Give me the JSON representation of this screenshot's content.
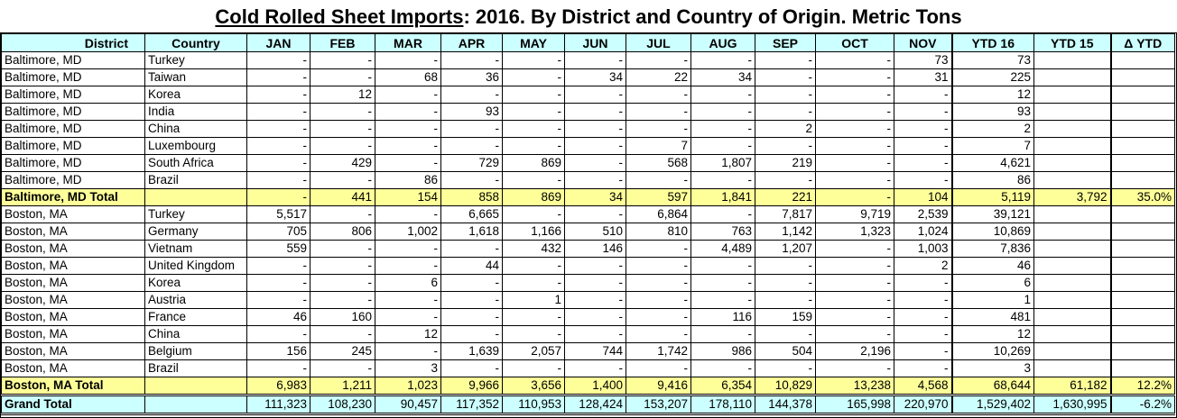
{
  "title": {
    "underlined": "Cold Rolled Sheet Imports",
    "rest": ": 2016. By District and Country of Origin. Metric Tons"
  },
  "headers": [
    "District",
    "Country",
    "JAN",
    "FEB",
    "MAR",
    "APR",
    "MAY",
    "JUN",
    "JUL",
    "AUG",
    "SEP",
    "OCT",
    "NOV",
    "YTD 16",
    "YTD 15",
    "Δ YTD"
  ],
  "rows": [
    {
      "type": "data",
      "cells": [
        "Baltimore, MD",
        "Turkey",
        "-",
        "-",
        "-",
        "-",
        "-",
        "-",
        "-",
        "-",
        "-",
        "-",
        "73",
        "73",
        "",
        ""
      ]
    },
    {
      "type": "data",
      "cells": [
        "Baltimore, MD",
        "Taiwan",
        "-",
        "-",
        "68",
        "36",
        "-",
        "34",
        "22",
        "34",
        "-",
        "-",
        "31",
        "225",
        "",
        ""
      ]
    },
    {
      "type": "data",
      "cells": [
        "Baltimore, MD",
        "Korea",
        "-",
        "12",
        "-",
        "-",
        "-",
        "-",
        "-",
        "-",
        "-",
        "-",
        "-",
        "12",
        "",
        ""
      ]
    },
    {
      "type": "data",
      "cells": [
        "Baltimore, MD",
        "India",
        "-",
        "-",
        "-",
        "93",
        "-",
        "-",
        "-",
        "-",
        "-",
        "-",
        "-",
        "93",
        "",
        ""
      ]
    },
    {
      "type": "data",
      "cells": [
        "Baltimore, MD",
        "China",
        "-",
        "-",
        "-",
        "-",
        "-",
        "-",
        "-",
        "-",
        "2",
        "-",
        "-",
        "2",
        "",
        ""
      ]
    },
    {
      "type": "data",
      "cells": [
        "Baltimore, MD",
        "Luxembourg",
        "-",
        "-",
        "-",
        "-",
        "-",
        "-",
        "7",
        "-",
        "-",
        "-",
        "-",
        "7",
        "",
        ""
      ]
    },
    {
      "type": "data",
      "cells": [
        "Baltimore, MD",
        "South Africa",
        "-",
        "429",
        "-",
        "729",
        "869",
        "-",
        "568",
        "1,807",
        "219",
        "-",
        "-",
        "4,621",
        "",
        ""
      ]
    },
    {
      "type": "data",
      "cells": [
        "Baltimore, MD",
        "Brazil",
        "-",
        "-",
        "86",
        "-",
        "-",
        "-",
        "-",
        "-",
        "-",
        "-",
        "-",
        "86",
        "",
        ""
      ]
    },
    {
      "type": "total",
      "cells": [
        "Baltimore, MD  Total",
        "",
        "-",
        "441",
        "154",
        "858",
        "869",
        "34",
        "597",
        "1,841",
        "221",
        "-",
        "104",
        "5,119",
        "3,792",
        "35.0%"
      ]
    },
    {
      "type": "data",
      "cells": [
        "Boston, MA",
        "Turkey",
        "5,517",
        "-",
        "-",
        "6,665",
        "-",
        "-",
        "6,864",
        "-",
        "7,817",
        "9,719",
        "2,539",
        "39,121",
        "",
        ""
      ]
    },
    {
      "type": "data",
      "cells": [
        "Boston, MA",
        "Germany",
        "705",
        "806",
        "1,002",
        "1,618",
        "1,166",
        "510",
        "810",
        "763",
        "1,142",
        "1,323",
        "1,024",
        "10,869",
        "",
        ""
      ]
    },
    {
      "type": "data",
      "cells": [
        "Boston, MA",
        "Vietnam",
        "559",
        "-",
        "-",
        "-",
        "432",
        "146",
        "-",
        "4,489",
        "1,207",
        "-",
        "1,003",
        "7,836",
        "",
        ""
      ]
    },
    {
      "type": "data",
      "cells": [
        "Boston, MA",
        "United Kingdom",
        "-",
        "-",
        "-",
        "44",
        "-",
        "-",
        "-",
        "-",
        "-",
        "-",
        "2",
        "46",
        "",
        ""
      ]
    },
    {
      "type": "data",
      "cells": [
        "Boston, MA",
        "Korea",
        "-",
        "-",
        "6",
        "-",
        "-",
        "-",
        "-",
        "-",
        "-",
        "-",
        "-",
        "6",
        "",
        ""
      ]
    },
    {
      "type": "data",
      "cells": [
        "Boston, MA",
        "Austria",
        "-",
        "-",
        "-",
        "-",
        "1",
        "-",
        "-",
        "-",
        "-",
        "-",
        "-",
        "1",
        "",
        ""
      ]
    },
    {
      "type": "data",
      "cells": [
        "Boston, MA",
        "France",
        "46",
        "160",
        "-",
        "-",
        "-",
        "-",
        "-",
        "116",
        "159",
        "-",
        "-",
        "481",
        "",
        ""
      ]
    },
    {
      "type": "data",
      "cells": [
        "Boston, MA",
        "China",
        "-",
        "-",
        "12",
        "-",
        "-",
        "-",
        "-",
        "-",
        "-",
        "-",
        "-",
        "12",
        "",
        ""
      ]
    },
    {
      "type": "data",
      "cells": [
        "Boston, MA",
        "Belgium",
        "156",
        "245",
        "-",
        "1,639",
        "2,057",
        "744",
        "1,742",
        "986",
        "504",
        "2,196",
        "-",
        "10,269",
        "",
        ""
      ]
    },
    {
      "type": "data",
      "cells": [
        "Boston, MA",
        "Brazil",
        "-",
        "-",
        "3",
        "-",
        "-",
        "-",
        "-",
        "-",
        "-",
        "-",
        "-",
        "3",
        "",
        ""
      ]
    },
    {
      "type": "total",
      "cells": [
        "Boston, MA  Total",
        "",
        "6,983",
        "1,211",
        "1,023",
        "9,966",
        "3,656",
        "1,400",
        "9,416",
        "6,354",
        "10,829",
        "13,238",
        "4,568",
        "68,644",
        "61,182",
        "12.2%"
      ]
    },
    {
      "type": "grand",
      "cells": [
        "Grand Total",
        "",
        "111,323",
        "108,230",
        "90,457",
        "117,352",
        "110,953",
        "128,424",
        "153,207",
        "178,110",
        "144,378",
        "165,998",
        "220,970",
        "1,529,402",
        "1,630,995",
        "-6.2%"
      ]
    }
  ]
}
